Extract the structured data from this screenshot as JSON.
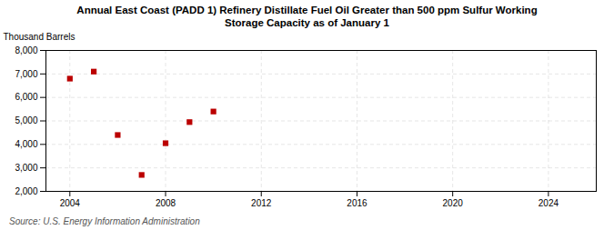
{
  "chart_data": {
    "type": "scatter",
    "title": "Annual East Coast (PADD 1) Refinery Distillate Fuel Oil Greater than 500 ppm Sulfur Working\nStorage Capacity as of January 1",
    "ylabel": "Thousand Barrels",
    "source": "Source: U.S. Energy Information Administration",
    "x": [
      2004,
      2005,
      2006,
      2007,
      2008,
      2009,
      2010
    ],
    "values": [
      6800,
      7100,
      4400,
      2700,
      4050,
      4950,
      5400
    ],
    "color": "#bb0000",
    "marker": "square",
    "xlim": [
      2003,
      2026
    ],
    "ylim": [
      2000,
      8000
    ],
    "xticks": [
      2004,
      2008,
      2012,
      2016,
      2020,
      2024
    ],
    "yticks": [
      {
        "value": 2000,
        "label": "2,000"
      },
      {
        "value": 3000,
        "label": "3,000"
      },
      {
        "value": 4000,
        "label": "4,000"
      },
      {
        "value": 5000,
        "label": "5,000"
      },
      {
        "value": 6000,
        "label": "6,000"
      },
      {
        "value": 7000,
        "label": "7,000"
      },
      {
        "value": 8000,
        "label": "8,000"
      }
    ],
    "grid": true
  }
}
